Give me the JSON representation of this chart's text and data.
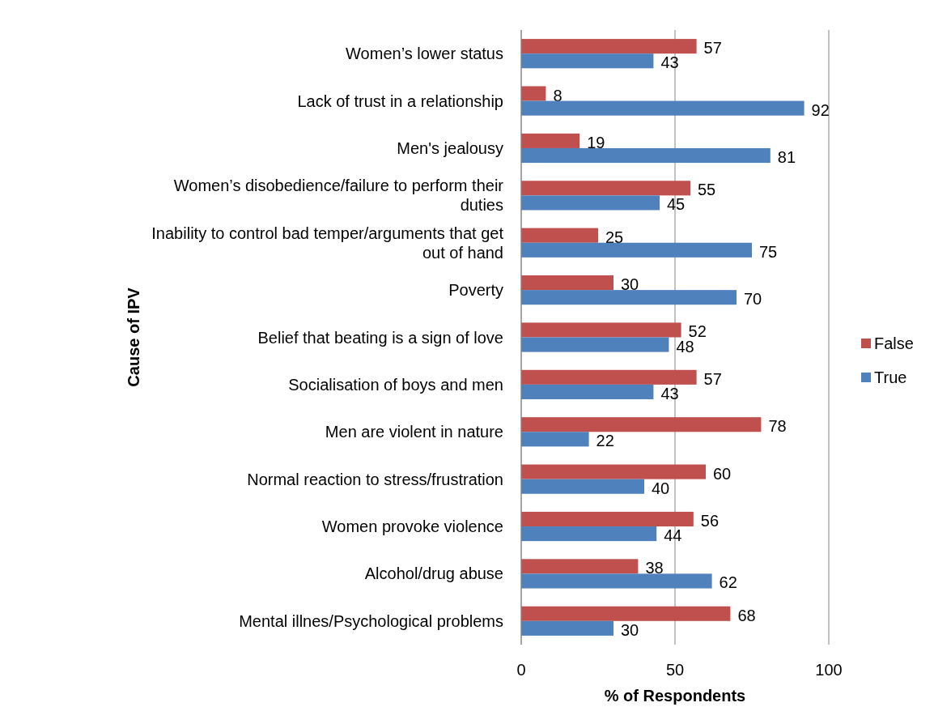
{
  "chart_data": {
    "type": "bar",
    "orientation": "horizontal",
    "xlabel": "% of Respondents",
    "ylabel": "Cause of IPV",
    "categories": [
      "Women’s lower status",
      "Lack of trust in a relationship",
      "Men's jealousy",
      "Women’s disobedience/failure to perform their duties",
      "Inability to control bad temper/arguments that get out of hand",
      "Poverty",
      "Belief that beating is a sign of love",
      "Socialisation of boys and men",
      "Men are violent in nature",
      "Normal reaction to stress/frustration",
      "Women provoke violence",
      "Alcohol/drug abuse",
      "Mental illnes/Psychological problems"
    ],
    "series": [
      {
        "name": "False",
        "color": "#c0504d",
        "values": [
          57,
          8,
          19,
          55,
          25,
          30,
          52,
          57,
          78,
          60,
          56,
          38,
          68
        ]
      },
      {
        "name": "True",
        "color": "#4f81bd",
        "values": [
          43,
          92,
          81,
          45,
          75,
          70,
          48,
          43,
          22,
          40,
          44,
          62,
          30
        ]
      }
    ],
    "xlim": [
      0,
      100
    ],
    "xticks": [
      0,
      50,
      100
    ],
    "grid": "x",
    "legend": "right",
    "data_labels": true
  }
}
